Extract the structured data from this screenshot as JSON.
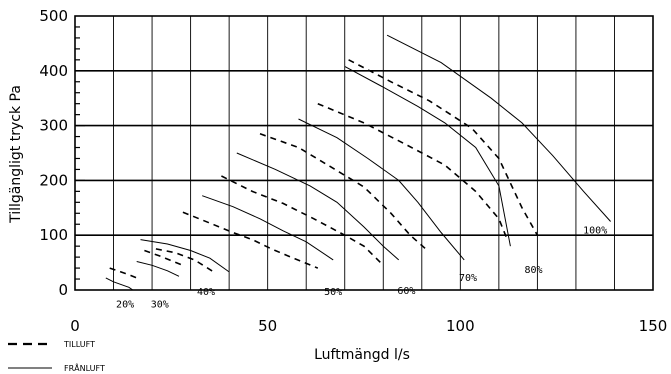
{
  "chart_data": {
    "type": "line",
    "xlabel": "Luftmängd l/s",
    "ylabel": "Tillgängligt tryck Pa",
    "xlim": [
      0,
      150
    ],
    "ylim": [
      0,
      500
    ],
    "x_ticks": [
      "0",
      "50",
      "100",
      "150"
    ],
    "y_ticks": [
      "0",
      "100",
      "200",
      "300",
      "400",
      "500"
    ],
    "grid": true,
    "legend": [
      {
        "label": "TILLUFT",
        "style": "dashed"
      },
      {
        "label": "FRÅNLUFT",
        "style": "solid"
      }
    ],
    "series": [
      {
        "speed": "20%",
        "label_at": [
          13,
          -25
        ],
        "tilluft": [
          [
            9,
            40
          ],
          [
            14,
            28
          ],
          [
            16,
            22
          ]
        ],
        "franluft": [
          [
            8,
            22
          ],
          [
            10,
            15
          ],
          [
            14,
            5
          ],
          [
            15,
            0
          ]
        ]
      },
      {
        "speed": "30%",
        "label_at": [
          22,
          -25
        ],
        "tilluft": [
          [
            18,
            72
          ],
          [
            22,
            62
          ],
          [
            28,
            45
          ]
        ],
        "franluft": [
          [
            16,
            52
          ],
          [
            20,
            45
          ],
          [
            24,
            35
          ],
          [
            27,
            25
          ]
        ]
      },
      {
        "speed": "40%",
        "label_at": [
          34,
          -2
        ],
        "tilluft": [
          [
            21,
            75
          ],
          [
            26,
            68
          ],
          [
            31,
            55
          ],
          [
            36,
            33
          ]
        ],
        "franluft": [
          [
            17,
            92
          ],
          [
            24,
            84
          ],
          [
            30,
            72
          ],
          [
            35,
            58
          ],
          [
            40,
            33
          ]
        ]
      },
      {
        "speed": "50%",
        "label_at": [
          67,
          -2
        ],
        "tilluft": [
          [
            28,
            142
          ],
          [
            35,
            122
          ],
          [
            41,
            105
          ],
          [
            46,
            92
          ],
          [
            51,
            75
          ],
          [
            56,
            60
          ],
          [
            63,
            40
          ]
        ],
        "franluft": [
          [
            33,
            172
          ],
          [
            41,
            152
          ],
          [
            48,
            130
          ],
          [
            54,
            108
          ],
          [
            60,
            88
          ],
          [
            67,
            55
          ]
        ]
      },
      {
        "speed": "60%",
        "label_at": [
          86,
          0
        ],
        "tilluft": [
          [
            38,
            208
          ],
          [
            46,
            180
          ],
          [
            54,
            158
          ],
          [
            62,
            130
          ],
          [
            70,
            100
          ],
          [
            75,
            80
          ],
          [
            80,
            45
          ]
        ],
        "franluft": [
          [
            42,
            250
          ],
          [
            52,
            220
          ],
          [
            61,
            190
          ],
          [
            68,
            160
          ],
          [
            75,
            115
          ],
          [
            80,
            80
          ],
          [
            84,
            55
          ]
        ]
      },
      {
        "speed": "70%",
        "label_at": [
          102,
          24
        ],
        "tilluft": [
          [
            48,
            285
          ],
          [
            58,
            260
          ],
          [
            67,
            222
          ],
          [
            75,
            188
          ],
          [
            82,
            140
          ],
          [
            87,
            100
          ],
          [
            91,
            75
          ]
        ],
        "franluft": [
          [
            58,
            312
          ],
          [
            68,
            278
          ],
          [
            76,
            240
          ],
          [
            84,
            200
          ],
          [
            89,
            160
          ],
          [
            95,
            105
          ],
          [
            101,
            55
          ]
        ]
      },
      {
        "speed": "80%",
        "label_at": [
          119,
          38
        ],
        "tilluft": [
          [
            63,
            340
          ],
          [
            75,
            305
          ],
          [
            86,
            265
          ],
          [
            96,
            228
          ],
          [
            104,
            180
          ],
          [
            110,
            130
          ],
          [
            112,
            95
          ]
        ],
        "franluft": [
          [
            70,
            408
          ],
          [
            80,
            370
          ],
          [
            89,
            335
          ],
          [
            96,
            305
          ],
          [
            104,
            260
          ],
          [
            110,
            190
          ],
          [
            113,
            80
          ]
        ]
      },
      {
        "speed": "100%",
        "label_at": [
          135,
          110
        ],
        "tilluft": [
          [
            71,
            420
          ],
          [
            82,
            380
          ],
          [
            92,
            345
          ],
          [
            103,
            295
          ],
          [
            110,
            240
          ],
          [
            116,
            150
          ],
          [
            120,
            100
          ]
        ],
        "franluft": [
          [
            81,
            465
          ],
          [
            95,
            415
          ],
          [
            108,
            350
          ],
          [
            116,
            305
          ],
          [
            124,
            245
          ],
          [
            132,
            180
          ],
          [
            139,
            125
          ]
        ]
      }
    ]
  }
}
